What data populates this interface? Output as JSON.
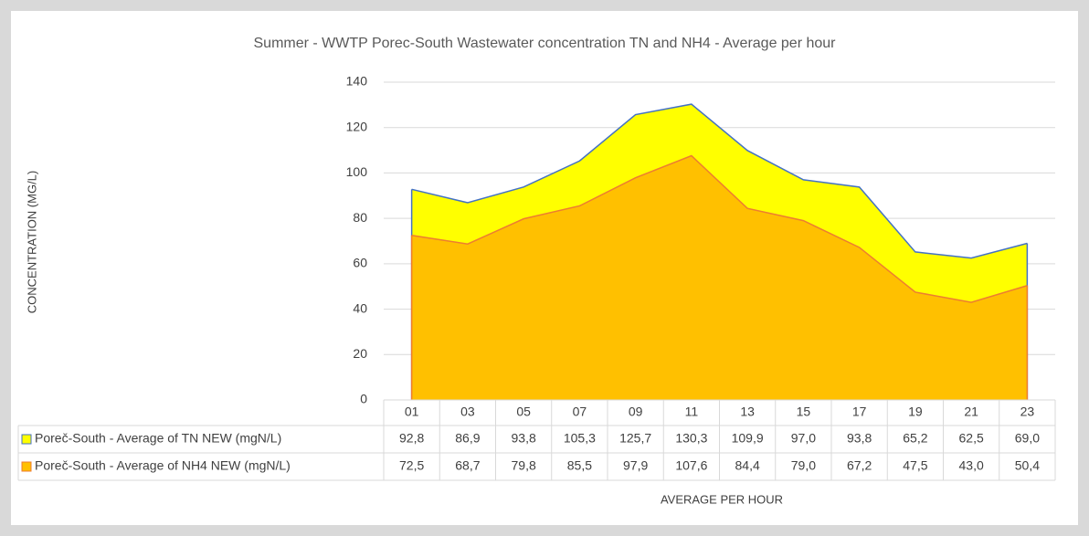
{
  "chart_data": {
    "type": "area",
    "title": "Summer - WWTP Porec-South Wastewater concentration TN and NH4 - Average per hour",
    "x_label": "AVERAGE PER HOUR",
    "y_label": "CONCENTRATION (MG/L)",
    "categories": [
      "01",
      "03",
      "05",
      "07",
      "09",
      "11",
      "13",
      "15",
      "17",
      "19",
      "21",
      "23"
    ],
    "series": [
      {
        "name": "Poreč-South - Average of TN  NEW (mgN/L)",
        "color": "#ffff00",
        "line_color": "#4472c4",
        "values": [
          92.8,
          86.9,
          93.8,
          105.3,
          125.7,
          130.3,
          109.9,
          97.0,
          93.8,
          65.2,
          62.5,
          69.0
        ],
        "value_labels": [
          "92,8",
          "86,9",
          "93,8",
          "105,3",
          "125,7",
          "130,3",
          "109,9",
          "97,0",
          "93,8",
          "65,2",
          "62,5",
          "69,0"
        ]
      },
      {
        "name": "Poreč-South - Average of NH4 NEW (mgN/L)",
        "color": "#ffc000",
        "line_color": "#ed7d31",
        "values": [
          72.5,
          68.7,
          79.8,
          85.5,
          97.9,
          107.6,
          84.4,
          79.0,
          67.2,
          47.5,
          43.0,
          50.4
        ],
        "value_labels": [
          "72,5",
          "68,7",
          "79,8",
          "85,5",
          "97,9",
          "107,6",
          "84,4",
          "79,0",
          "67,2",
          "47,5",
          "43,0",
          "50,4"
        ]
      }
    ],
    "ylim": [
      0,
      140
    ],
    "yticks": [
      0,
      20,
      40,
      60,
      80,
      100,
      120,
      140
    ],
    "grid": true
  }
}
